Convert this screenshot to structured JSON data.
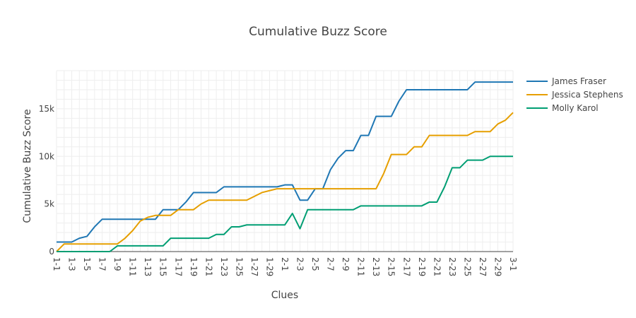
{
  "chart_data": {
    "type": "line",
    "title": "Cumulative Buzz Score",
    "xlabel": "Clues",
    "ylabel": "Cumulative Buzz Score",
    "ylim": [
      0,
      19000
    ],
    "yticks": [
      {
        "value": 0,
        "label": "0"
      },
      {
        "value": 5000,
        "label": "5k"
      },
      {
        "value": 10000,
        "label": "10k"
      },
      {
        "value": 15000,
        "label": "15k"
      }
    ],
    "grid": true,
    "legend_position": "top-right",
    "categories": [
      "1-1",
      "1-2",
      "1-3",
      "1-4",
      "1-5",
      "1-6",
      "1-7",
      "1-8",
      "1-9",
      "1-10",
      "1-11",
      "1-12",
      "1-13",
      "1-14",
      "1-15",
      "1-16",
      "1-17",
      "1-18",
      "1-19",
      "1-20",
      "1-21",
      "1-22",
      "1-23",
      "1-24",
      "1-25",
      "1-26",
      "1-27",
      "1-28",
      "1-29",
      "1-30",
      "2-1",
      "2-2",
      "2-3",
      "2-4",
      "2-5",
      "2-6",
      "2-7",
      "2-8",
      "2-9",
      "2-10",
      "2-11",
      "2-12",
      "2-13",
      "2-14",
      "2-15",
      "2-16",
      "2-17",
      "2-18",
      "2-19",
      "2-20",
      "2-21",
      "2-22",
      "2-23",
      "2-24",
      "2-25",
      "2-26",
      "2-27",
      "2-28",
      "2-29",
      "2-30",
      "3-1"
    ],
    "tick_labels": [
      "1-1",
      "1-3",
      "1-5",
      "1-7",
      "1-9",
      "1-11",
      "1-13",
      "1-15",
      "1-17",
      "1-19",
      "1-21",
      "1-23",
      "1-25",
      "1-27",
      "1-29",
      "2-1",
      "2-3",
      "2-5",
      "2-7",
      "2-9",
      "2-11",
      "2-13",
      "2-15",
      "2-17",
      "2-19",
      "2-21",
      "2-23",
      "2-25",
      "2-27",
      "2-29",
      "3-1"
    ],
    "series": [
      {
        "name": "James Fraser",
        "color": "#1f77b4",
        "values": [
          1000,
          1000,
          1000,
          1400,
          1600,
          2600,
          3400,
          3400,
          3400,
          3400,
          3400,
          3400,
          3400,
          3400,
          4400,
          4400,
          4400,
          5200,
          6200,
          6200,
          6200,
          6200,
          6800,
          6800,
          6800,
          6800,
          6800,
          6800,
          6800,
          6800,
          7000,
          7000,
          5400,
          5400,
          6600,
          6600,
          8600,
          9800,
          10600,
          10600,
          12200,
          12200,
          14200,
          14200,
          14200,
          15800,
          17000,
          17000,
          17000,
          17000,
          17000,
          17000,
          17000,
          17000,
          17000,
          17800,
          17800,
          17800,
          17800,
          17800,
          17800
        ]
      },
      {
        "name": "Jessica Stephens",
        "color": "#e69f00",
        "values": [
          0,
          800,
          800,
          800,
          800,
          800,
          800,
          800,
          800,
          1400,
          2200,
          3200,
          3600,
          3800,
          3800,
          3800,
          4400,
          4400,
          4400,
          5000,
          5400,
          5400,
          5400,
          5400,
          5400,
          5400,
          5800,
          6200,
          6400,
          6600,
          6600,
          6600,
          6600,
          6600,
          6600,
          6600,
          6600,
          6600,
          6600,
          6600,
          6600,
          6600,
          6600,
          8200,
          10200,
          10200,
          10200,
          11000,
          11000,
          12200,
          12200,
          12200,
          12200,
          12200,
          12200,
          12600,
          12600,
          12600,
          13400,
          13800,
          14600
        ]
      },
      {
        "name": "Molly Karol",
        "color": "#009e73",
        "values": [
          0,
          0,
          0,
          0,
          0,
          0,
          0,
          0,
          600,
          600,
          600,
          600,
          600,
          600,
          600,
          1400,
          1400,
          1400,
          1400,
          1400,
          1400,
          1800,
          1800,
          2600,
          2600,
          2800,
          2800,
          2800,
          2800,
          2800,
          2800,
          4000,
          2400,
          4400,
          4400,
          4400,
          4400,
          4400,
          4400,
          4400,
          4800,
          4800,
          4800,
          4800,
          4800,
          4800,
          4800,
          4800,
          4800,
          5200,
          5200,
          6800,
          8800,
          8800,
          9600,
          9600,
          9600,
          10000,
          10000,
          10000,
          10000
        ]
      }
    ]
  }
}
